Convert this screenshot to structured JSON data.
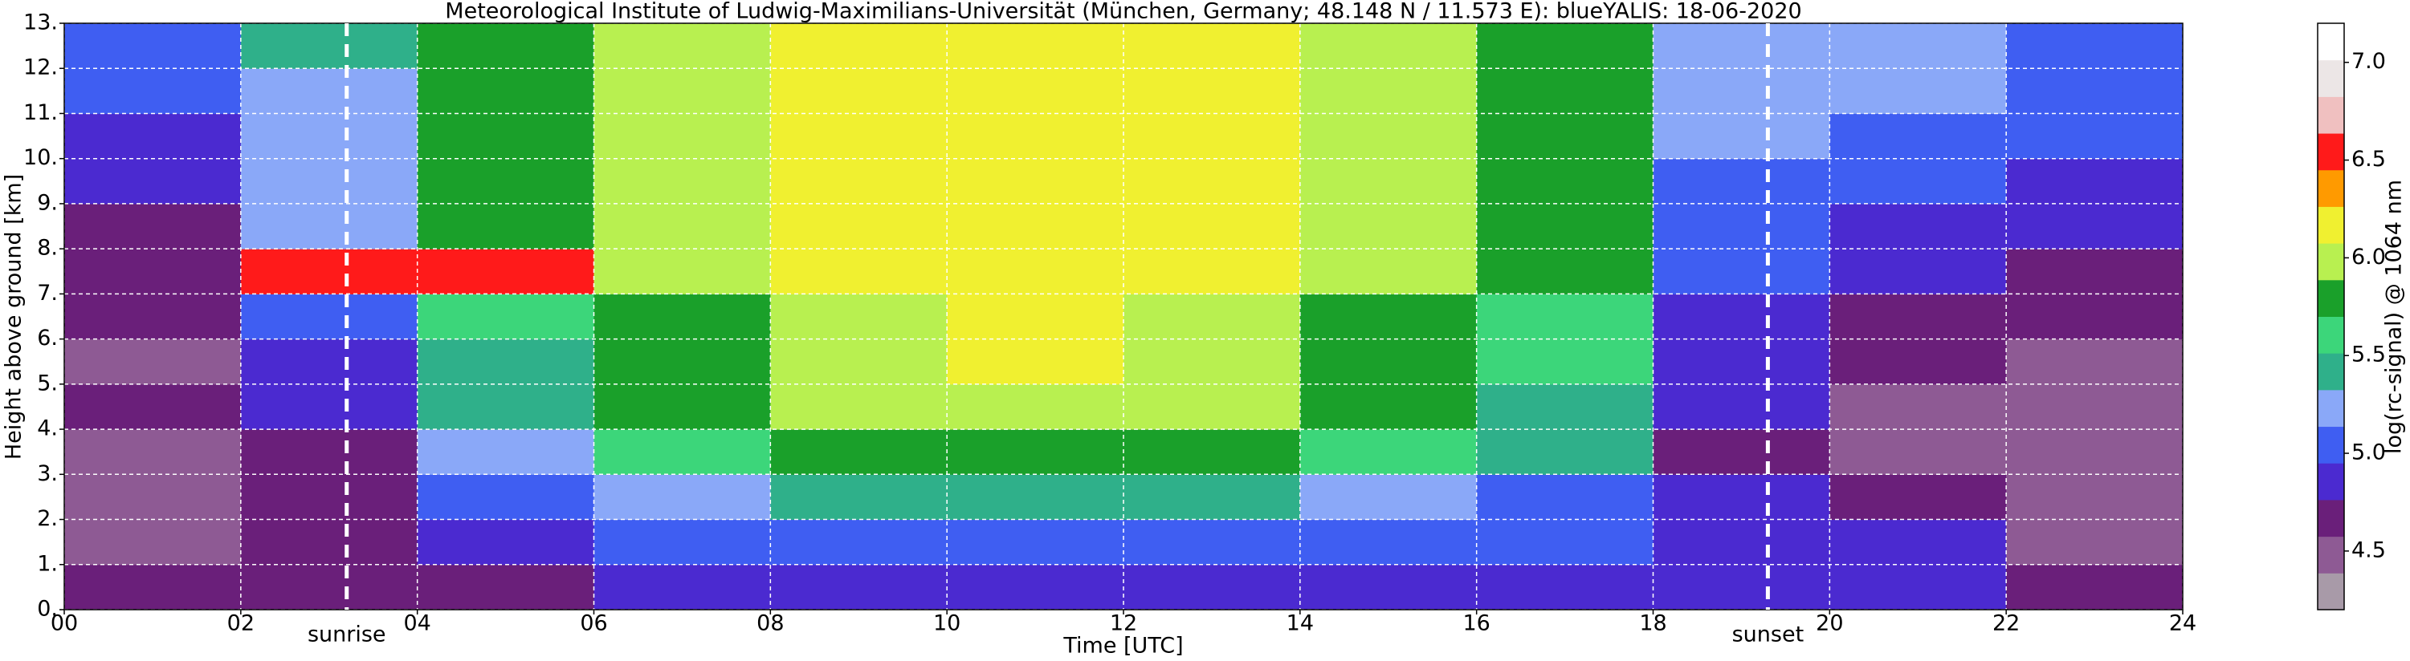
{
  "chart_data": {
    "type": "heatmap",
    "title": "Meteorological Institute of Ludwig-Maximilians-Universität (München, Germany; 48.148 N / 11.573 E):     blueYALIS: 18-06-2020",
    "xlabel": "Time [UTC]",
    "ylabel": "Height above ground [km]",
    "colorbar_label": "log(rc-signal) @ 1064 nm",
    "x_bins": [
      0,
      2,
      4,
      6,
      8,
      10,
      12,
      14,
      16,
      18,
      20,
      22,
      24
    ],
    "y_bins": [
      0,
      1,
      2,
      3,
      4,
      5,
      6,
      7,
      8,
      9,
      10,
      11,
      12,
      13
    ],
    "values": [
      [
        4.6,
        4.6,
        4.7,
        4.8,
        4.9,
        4.9,
        4.9,
        4.9,
        4.9,
        4.9,
        4.9,
        4.6
      ],
      [
        4.4,
        4.6,
        4.8,
        5.0,
        5.0,
        5.0,
        5.0,
        5.0,
        5.0,
        4.9,
        4.9,
        4.5
      ],
      [
        4.4,
        4.6,
        5.0,
        5.3,
        5.4,
        5.4,
        5.4,
        5.3,
        5.1,
        4.8,
        4.7,
        4.4
      ],
      [
        4.4,
        4.7,
        5.3,
        5.6,
        5.7,
        5.8,
        5.7,
        5.6,
        5.4,
        4.7,
        4.5,
        4.4
      ],
      [
        4.6,
        4.8,
        5.4,
        5.7,
        5.9,
        6.0,
        5.9,
        5.7,
        5.5,
        4.8,
        4.5,
        4.5
      ],
      [
        4.5,
        4.9,
        5.5,
        5.8,
        6.0,
        6.1,
        6.0,
        5.8,
        5.6,
        4.8,
        4.6,
        4.5
      ],
      [
        4.6,
        5.0,
        5.6,
        5.8,
        6.0,
        6.2,
        6.0,
        5.8,
        5.6,
        4.9,
        4.7,
        4.6
      ],
      [
        4.6,
        6.5,
        6.6,
        5.9,
        6.1,
        6.2,
        6.1,
        5.9,
        5.7,
        5.0,
        4.8,
        4.7
      ],
      [
        4.7,
        5.3,
        5.7,
        5.9,
        6.1,
        6.2,
        6.1,
        5.9,
        5.7,
        5.0,
        4.9,
        4.8
      ],
      [
        4.8,
        5.3,
        5.7,
        5.9,
        6.1,
        6.2,
        6.1,
        5.9,
        5.7,
        5.1,
        5.0,
        4.9
      ],
      [
        4.9,
        5.3,
        5.7,
        5.9,
        6.1,
        6.2,
        6.1,
        5.9,
        5.7,
        5.2,
        5.1,
        5.0
      ],
      [
        5.0,
        5.3,
        5.7,
        5.9,
        6.1,
        6.2,
        6.1,
        5.9,
        5.7,
        5.3,
        5.2,
        5.1
      ],
      [
        5.1,
        5.4,
        5.7,
        5.9,
        6.1,
        6.2,
        6.1,
        5.9,
        5.7,
        5.3,
        5.2,
        5.1
      ]
    ],
    "xlim": [
      0,
      24
    ],
    "ylim": [
      0,
      13
    ],
    "clim": [
      4.2,
      7.2
    ],
    "xticks": [
      {
        "value": 0,
        "label": "00"
      },
      {
        "value": 2,
        "label": "02"
      },
      {
        "value": 4,
        "label": "04"
      },
      {
        "value": 6,
        "label": "06"
      },
      {
        "value": 8,
        "label": "08"
      },
      10,
      12,
      14,
      16,
      18,
      20,
      22,
      24
    ],
    "yticks": [
      {
        "value": 0,
        "label": "0."
      },
      {
        "value": 1,
        "label": "1."
      },
      {
        "value": 2,
        "label": "2."
      },
      {
        "value": 3,
        "label": "3."
      },
      {
        "value": 4,
        "label": "4."
      },
      {
        "value": 5,
        "label": "5."
      },
      {
        "value": 6,
        "label": "6."
      },
      {
        "value": 7,
        "label": "7."
      },
      {
        "value": 8,
        "label": "8."
      },
      {
        "value": 9,
        "label": "9."
      },
      {
        "value": 10,
        "label": "10."
      },
      {
        "value": 11,
        "label": "11."
      },
      {
        "value": 12,
        "label": "12."
      },
      {
        "value": 13,
        "label": "13."
      }
    ],
    "cticks": [
      4.5,
      {
        "value": 5,
        "label": "5.0"
      },
      5.5,
      {
        "value": 6,
        "label": "6.0"
      },
      6.5,
      {
        "value": 7,
        "label": "7.0"
      }
    ],
    "colormap": [
      "#a89aa8",
      "#8e5a94",
      "#6a1f7a",
      "#4b2ad0",
      "#3f5ef2",
      "#8aa8f8",
      "#2fb08a",
      "#3cd67a",
      "#1aa02a",
      "#b8f050",
      "#f0f030",
      "#ff9a00",
      "#ff1a1a",
      "#f0c0c0",
      "#ece6e6",
      "#ffffff"
    ],
    "grid": true,
    "annotations": [
      {
        "text": "sunrise",
        "x": 3.2
      },
      {
        "text": "sunset",
        "x": 19.3
      }
    ]
  }
}
